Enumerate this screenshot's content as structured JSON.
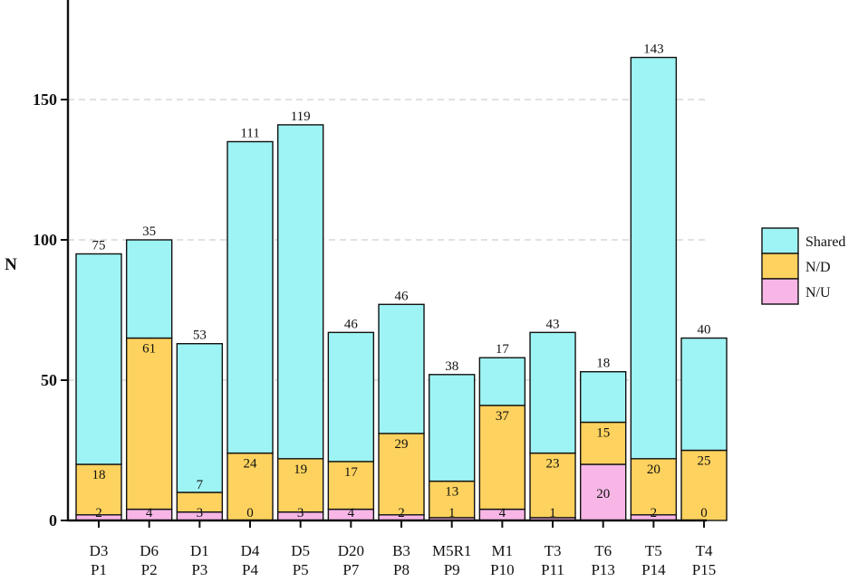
{
  "chart_data": {
    "type": "bar",
    "stacked": true,
    "ylabel": "N",
    "ylim": [
      0,
      185
    ],
    "yticks": [
      0,
      50,
      100,
      150
    ],
    "grid": "horizontal dashed",
    "legend_position": "right",
    "categories": [
      [
        "D3",
        "P1"
      ],
      [
        "D6",
        "P2"
      ],
      [
        "D1",
        "P3"
      ],
      [
        "D4",
        "P4"
      ],
      [
        "D5",
        "P5"
      ],
      [
        "D20",
        "P7"
      ],
      [
        "B3",
        "P8"
      ],
      [
        "M5R1",
        "P9"
      ],
      [
        "M1",
        "P10"
      ],
      [
        "T3",
        "P11"
      ],
      [
        "T6",
        "P13"
      ],
      [
        "T5",
        "P14"
      ],
      [
        "T4",
        "P15"
      ]
    ],
    "series": [
      {
        "name": "N/U",
        "color": "#f7b6e6",
        "values": [
          2,
          4,
          3,
          0,
          3,
          4,
          2,
          1,
          4,
          1,
          20,
          2,
          0
        ],
        "labels": [
          "2",
          "4",
          "3",
          "0",
          "3",
          "4",
          "2",
          "1",
          "4",
          "1",
          "20",
          "2",
          "0"
        ]
      },
      {
        "name": "N/D",
        "color": "#fdd25e",
        "values": [
          18,
          61,
          7,
          24,
          19,
          17,
          29,
          13,
          37,
          23,
          15,
          20,
          25
        ],
        "labels": [
          "18",
          "61",
          "7",
          "24",
          "19",
          "17",
          "29",
          "13",
          "37",
          "23",
          "15",
          "20",
          "25"
        ]
      },
      {
        "name": "Shared",
        "color": "#9ef4f4",
        "values": [
          75,
          35,
          53,
          111,
          119,
          46,
          46,
          38,
          17,
          43,
          18,
          143,
          40
        ],
        "labels": [
          "75",
          "35",
          "53",
          "111",
          "119",
          "46",
          "46",
          "38",
          "17",
          "43",
          "18",
          "143",
          "40"
        ]
      }
    ],
    "legend_order": [
      "Shared",
      "N/D",
      "N/U"
    ]
  }
}
